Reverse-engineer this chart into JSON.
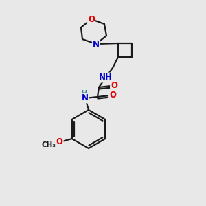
{
  "background_color": "#e8e8e8",
  "bond_color": "#1a1a1a",
  "line_width": 1.6,
  "atom_colors": {
    "O": "#e00000",
    "N": "#0000cc",
    "H": "#3a8888",
    "C": "#1a1a1a"
  },
  "font_size_atom": 8.5,
  "font_size_small": 7.5
}
